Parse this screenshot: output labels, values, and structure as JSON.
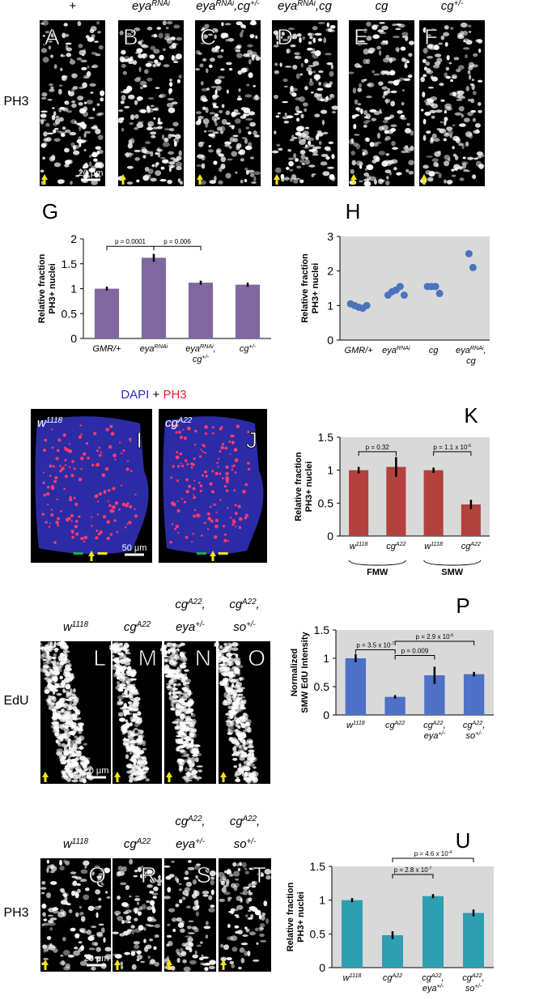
{
  "images": [
    {
      "row_label": "PH3",
      "scale": "20 μm",
      "panels": [
        {
          "letter": "A",
          "label": [
            [
              {
                "t": "+"
              }
            ]
          ]
        },
        {
          "letter": "B",
          "label": [
            [
              {
                "t": "eya"
              },
              {
                "s": "RNAi"
              }
            ]
          ]
        },
        {
          "letter": "C",
          "label": [
            [
              {
                "t": "eya"
              },
              {
                "s": "RNAi"
              },
              {
                "t": ",cg"
              },
              {
                "s": "+/-"
              }
            ]
          ]
        },
        {
          "letter": "D",
          "label": [
            [
              {
                "t": "eya"
              },
              {
                "s": "RNAi"
              },
              {
                "t": ",cg"
              }
            ]
          ]
        },
        {
          "letter": "E",
          "label": [
            [
              {
                "t": "cg"
              }
            ]
          ]
        },
        {
          "letter": "F",
          "label": [
            [
              {
                "t": "cg"
              },
              {
                "s": "+/-"
              }
            ]
          ]
        }
      ]
    },
    {
      "title": [
        {
          "t": "DAPI"
        },
        {
          "t": " + "
        },
        {
          "t": "PH3"
        }
      ],
      "scale": "50 μm",
      "panels": [
        {
          "letter": "I",
          "label": [
            [
              {
                "t": "w"
              },
              {
                "s": "1118"
              }
            ]
          ]
        },
        {
          "letter": "J",
          "label": [
            [
              {
                "t": "cg"
              },
              {
                "s": "A22"
              }
            ]
          ]
        }
      ]
    },
    {
      "row_label": "EdU",
      "scale": "20 μm",
      "panels": [
        {
          "letter": "L",
          "label": [
            [
              {
                "t": "w"
              },
              {
                "s": "1118"
              }
            ]
          ]
        },
        {
          "letter": "M",
          "label": [
            [
              {
                "t": "cg"
              },
              {
                "s": "A22"
              }
            ]
          ]
        },
        {
          "letter": "N",
          "label": [
            [
              {
                "t": "cg"
              },
              {
                "s": "A22"
              },
              {
                "t": ","
              }
            ],
            [
              {
                "t": "eya"
              },
              {
                "s": "+/-"
              }
            ]
          ]
        },
        {
          "letter": "O",
          "label": [
            [
              {
                "t": "cg"
              },
              {
                "s": "A22"
              },
              {
                "t": ","
              }
            ],
            [
              {
                "t": "so"
              },
              {
                "s": "+/-"
              }
            ]
          ]
        }
      ]
    },
    {
      "row_label": "PH3",
      "scale": "20 μm",
      "panels": [
        {
          "letter": "Q",
          "label": [
            [
              {
                "t": "w"
              },
              {
                "s": "1118"
              }
            ]
          ]
        },
        {
          "letter": "R",
          "label": [
            [
              {
                "t": "cg"
              },
              {
                "s": "A22"
              }
            ]
          ]
        },
        {
          "letter": "S",
          "label": [
            [
              {
                "t": "cg"
              },
              {
                "s": "A22"
              },
              {
                "t": ","
              }
            ],
            [
              {
                "t": "eya"
              },
              {
                "s": "+/-"
              }
            ]
          ]
        },
        {
          "letter": "T",
          "label": [
            [
              {
                "t": "cg"
              },
              {
                "s": "A22"
              },
              {
                "t": ","
              }
            ],
            [
              {
                "t": "so"
              },
              {
                "s": "+/-"
              }
            ]
          ]
        }
      ]
    }
  ],
  "chart_data": [
    {
      "type": "bar",
      "panel": "G",
      "ylabel": [
        "Relative fraction",
        "PH3+ nuclei"
      ],
      "categories": [
        [
          [
            {
              "t": "GMR/+"
            }
          ]
        ],
        [
          [
            {
              "t": "eya"
            },
            {
              "s": "RNAi"
            }
          ]
        ],
        [
          [
            {
              "t": "eya"
            },
            {
              "s": "RNAi"
            },
            {
              "t": ","
            }
          ],
          [
            {
              "t": "cg"
            },
            {
              "s": "+/-"
            }
          ]
        ],
        [
          [
            {
              "t": "cg"
            },
            {
              "s": "+/-"
            }
          ]
        ]
      ],
      "values": [
        1,
        1.62,
        1.12,
        1.08
      ],
      "errors": [
        0.04,
        0.08,
        0.04,
        0.04
      ],
      "color": "#8067a0",
      "background": "#ffffff",
      "ylim": [
        0,
        2
      ],
      "yticks": [
        0,
        0.5,
        1,
        1.5,
        2
      ],
      "grid": false,
      "annotations": [
        [
          {
            "t": "p = 0.0001"
          }
        ],
        [
          {
            "t": "p = 0.006"
          }
        ]
      ]
    },
    {
      "type": "scatter",
      "panel": "H",
      "ylabel": [
        "Relative fraction",
        "PH3+ nuclei"
      ],
      "categories": [
        [
          [
            {
              "t": "GMR/+"
            }
          ]
        ],
        [
          [
            {
              "t": "eya"
            },
            {
              "s": "RNAi"
            }
          ]
        ],
        [
          [
            {
              "t": "cg"
            }
          ]
        ],
        [
          [
            {
              "t": "eya"
            },
            {
              "s": "RNAi"
            },
            {
              "t": ","
            }
          ],
          [
            {
              "t": "cg"
            }
          ]
        ]
      ],
      "values": [
        [
          1.05,
          1.0,
          0.95,
          0.92,
          1.0
        ],
        [
          1.3,
          1.4,
          1.45,
          1.55,
          1.3
        ],
        [
          1.55,
          1.55,
          1.55,
          1.35
        ],
        [
          2.5,
          2.1
        ]
      ],
      "color": "#4a73bd",
      "background": "#d9d9d9",
      "ylim": [
        0,
        3
      ],
      "yticks": [
        0,
        1,
        2,
        3
      ],
      "grid": false
    },
    {
      "type": "bar",
      "panel": "K",
      "ylabel": [
        "Relative fraction",
        "PH3+ nuclei"
      ],
      "categories": [
        [
          [
            {
              "t": "w"
            },
            {
              "s": "1118"
            }
          ]
        ],
        [
          [
            {
              "t": "cg"
            },
            {
              "s": "A22"
            }
          ]
        ],
        [
          [
            {
              "t": "w"
            },
            {
              "s": "1118"
            }
          ]
        ],
        [
          [
            {
              "t": "cg"
            },
            {
              "s": "A22"
            }
          ]
        ]
      ],
      "groups": [
        "FMW",
        "SMW"
      ],
      "values": [
        1,
        1.05,
        1,
        0.48
      ],
      "errors": [
        0.05,
        0.15,
        0.04,
        0.07
      ],
      "color": "#b3413d",
      "background": "#d9d9d9",
      "ylim": [
        0,
        1.5
      ],
      "yticks": [
        0,
        0.5,
        1,
        1.5
      ],
      "grid": false,
      "annotations": [
        [
          {
            "t": "p = 0.32"
          }
        ],
        [
          {
            "t": "p = 1.1 x 10"
          },
          {
            "s": "-6"
          }
        ]
      ]
    },
    {
      "type": "bar",
      "panel": "P",
      "ylabel": [
        "Normalized",
        "SMW EdU Intensity"
      ],
      "categories": [
        [
          [
            {
              "t": "w"
            },
            {
              "s": "1118"
            }
          ]
        ],
        [
          [
            {
              "t": "cg"
            },
            {
              "s": "A22"
            }
          ]
        ],
        [
          [
            {
              "t": "cg"
            },
            {
              "s": "A22"
            },
            {
              "t": ","
            }
          ],
          [
            {
              "t": "eya"
            },
            {
              "s": "+/-"
            }
          ]
        ],
        [
          [
            {
              "t": "cg"
            },
            {
              "s": "A22"
            },
            {
              "t": ","
            }
          ],
          [
            {
              "t": "so"
            },
            {
              "s": "+/-"
            }
          ]
        ]
      ],
      "values": [
        1,
        0.32,
        0.7,
        0.72
      ],
      "errors": [
        0.07,
        0.03,
        0.15,
        0.04
      ],
      "color": "#4e70c6",
      "background": "#d9d9d9",
      "ylim": [
        0,
        1.5
      ],
      "yticks": [
        0,
        0.5,
        1,
        1.5
      ],
      "grid": false,
      "annotations": [
        [
          {
            "t": "p = 3.5 x 10"
          },
          {
            "s": "-7"
          }
        ],
        [
          {
            "t": "p = 2.9 x 10"
          },
          {
            "s": "-6"
          }
        ],
        [
          {
            "t": "p = 0.009"
          }
        ]
      ]
    },
    {
      "type": "bar",
      "panel": "U",
      "ylabel": [
        "Relative fraction",
        "PH3+ nuclei"
      ],
      "categories": [
        [
          [
            {
              "t": "w"
            },
            {
              "s": "1118"
            }
          ]
        ],
        [
          [
            {
              "t": "cg"
            },
            {
              "s": "A22"
            }
          ]
        ],
        [
          [
            {
              "t": "cg"
            },
            {
              "s": "A22"
            },
            {
              "t": ","
            }
          ],
          [
            {
              "t": "eya"
            },
            {
              "s": "+/-"
            }
          ]
        ],
        [
          [
            {
              "t": "cg"
            },
            {
              "s": "A22"
            },
            {
              "t": ","
            }
          ],
          [
            {
              "t": "so"
            },
            {
              "s": "+/-"
            }
          ]
        ]
      ],
      "values": [
        1,
        0.48,
        1.06,
        0.81
      ],
      "errors": [
        0.03,
        0.06,
        0.03,
        0.05
      ],
      "color": "#2e9fb2",
      "background": "#d9d9d9",
      "ylim": [
        0,
        1.5
      ],
      "yticks": [
        0,
        0.5,
        1,
        1.5
      ],
      "grid": false,
      "annotations": [
        [
          {
            "t": "p = 4.6 x 10"
          },
          {
            "s": "-4"
          }
        ],
        [
          {
            "t": "p = 2.8 x 10"
          },
          {
            "s": "-7"
          }
        ]
      ]
    }
  ]
}
